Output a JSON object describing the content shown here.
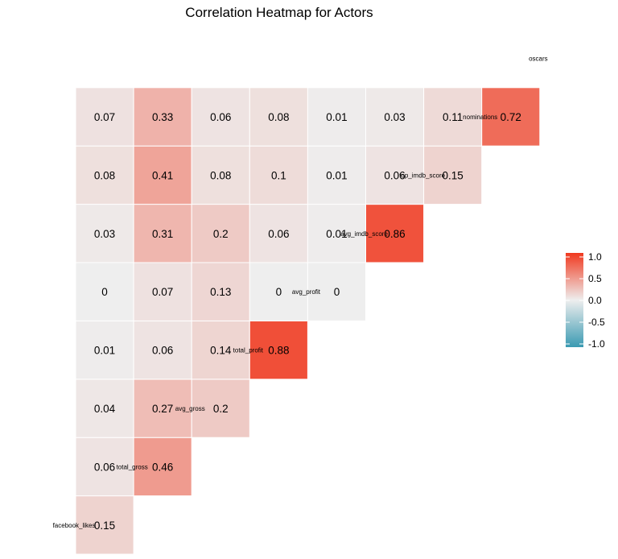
{
  "chart_data": {
    "type": "heatmap",
    "title": "Correlation Heatmap for Actors",
    "variables": [
      "facebook_likes",
      "total_gross",
      "avg_gross",
      "total_profit",
      "avg_profit",
      "avg_imdb_score",
      "top_imdb_score",
      "nominations",
      "oscars"
    ],
    "matrix": [
      [
        null,
        null,
        null,
        null,
        null,
        null,
        null,
        null,
        null
      ],
      [
        0.15,
        null,
        null,
        null,
        null,
        null,
        null,
        null,
        null
      ],
      [
        0.06,
        0.46,
        null,
        null,
        null,
        null,
        null,
        null,
        null
      ],
      [
        0.04,
        0.27,
        0.2,
        null,
        null,
        null,
        null,
        null,
        null
      ],
      [
        0.01,
        0.06,
        0.14,
        0.88,
        null,
        null,
        null,
        null,
        null
      ],
      [
        0,
        0.07,
        0.13,
        0,
        0,
        null,
        null,
        null,
        null
      ],
      [
        0.03,
        0.31,
        0.2,
        0.06,
        0.01,
        0.86,
        null,
        null,
        null
      ],
      [
        0.08,
        0.41,
        0.08,
        0.1,
        0.01,
        0.06,
        0.15,
        null,
        null
      ],
      [
        0.07,
        0.33,
        0.06,
        0.08,
        0.01,
        0.03,
        0.11,
        0.72,
        null
      ]
    ],
    "legend": {
      "ticks": [
        "-1.0",
        "-0.5",
        "0.0",
        "0.5",
        "1.0"
      ],
      "low_color": "#3A9AB2",
      "mid_color": "#EEEEEE",
      "high_color": "#F0391F",
      "placement": "right"
    },
    "grid": false
  }
}
